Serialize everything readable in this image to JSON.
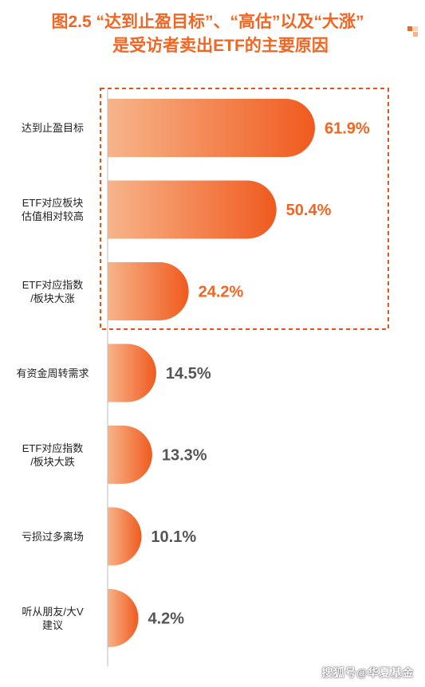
{
  "figure": {
    "title_line1": "图2.5 “达到止盈目标”、“高估”以及“大涨”",
    "title_line2": "是受访者卖出ETF的主要原因",
    "watermark": "搜狐号@华夏基金"
  },
  "colors": {
    "accent": "#f26522",
    "bar_light": "#f7b48a",
    "bar_dark": "#f05a1e",
    "label_highlight": "#f26522",
    "label_normal": "#555555"
  },
  "chart_data": {
    "type": "bar",
    "orientation": "horizontal",
    "categories": [
      [
        "达到止盈目标"
      ],
      [
        "ETF对应板块",
        "估值相对较高"
      ],
      [
        "ETF对应指数",
        "/板块大涨"
      ],
      [
        "有资金周转需求"
      ],
      [
        "ETF对应指数",
        "/板块大跌"
      ],
      [
        "亏损过多离场"
      ],
      [
        "听从朋友/大V",
        "建议"
      ]
    ],
    "values": [
      61.9,
      50.4,
      24.2,
      14.5,
      13.3,
      10.1,
      4.2
    ],
    "value_labels": [
      "61.9%",
      "50.4%",
      "24.2%",
      "14.5%",
      "13.3%",
      "10.1%",
      "4.2%"
    ],
    "highlighted": [
      true,
      true,
      true,
      false,
      false,
      false,
      false
    ],
    "xlim": [
      0,
      80
    ],
    "grid": false,
    "legend": "none"
  }
}
